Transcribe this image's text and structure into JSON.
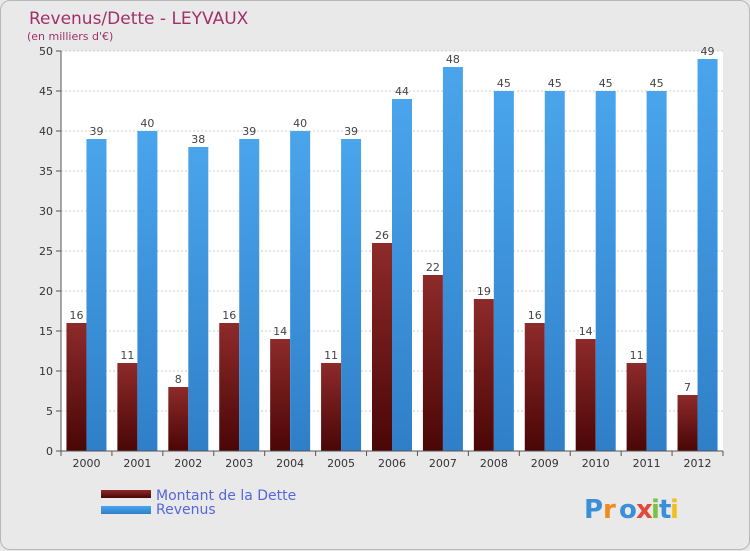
{
  "chart_data": {
    "type": "bar",
    "title": "Revenus/Dette - LEYVAUX",
    "subtitle": "(en milliers d'€)",
    "categories": [
      "2000",
      "2001",
      "2002",
      "2003",
      "2004",
      "2005",
      "2006",
      "2007",
      "2008",
      "2009",
      "2010",
      "2011",
      "2012"
    ],
    "series": [
      {
        "name": "Montant de la Dette",
        "color": "#7a1a1a",
        "values": [
          16,
          11,
          8,
          16,
          14,
          11,
          26,
          22,
          19,
          16,
          14,
          11,
          7
        ]
      },
      {
        "name": "Revenus",
        "color": "#3f97e0",
        "values": [
          39,
          40,
          38,
          39,
          40,
          39,
          44,
          48,
          45,
          45,
          45,
          45,
          49
        ]
      }
    ],
    "ylim": [
      0,
      50
    ],
    "yticks": [
      0,
      5,
      10,
      15,
      20,
      25,
      30,
      35,
      40,
      45,
      50
    ],
    "grid": true,
    "legend": "bottom-left"
  },
  "logo": {
    "text": "Proxiti",
    "colors": [
      "#3a8fd8",
      "#f08a1c",
      "#3a8fd8",
      "#e04a3a",
      "#7cc242",
      "#3a8fd8",
      "#f0c020"
    ]
  }
}
